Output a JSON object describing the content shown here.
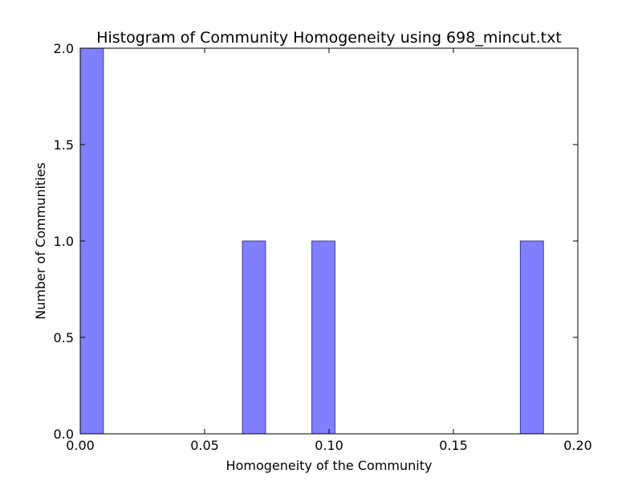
{
  "chart_data": {
    "type": "bar",
    "title": "Histogram of Community Homogeneity using 698_mincut.txt",
    "xlabel": "Homogeneity of the Community",
    "ylabel": "Number of Communities",
    "xlim": [
      0.0,
      0.2
    ],
    "ylim": [
      0.0,
      2.0
    ],
    "x_ticks": [
      "0.00",
      "0.05",
      "0.10",
      "0.15",
      "0.20"
    ],
    "y_ticks": [
      "0.0",
      "0.5",
      "1.0",
      "1.5",
      "2.0"
    ],
    "grid": false,
    "bins": [
      {
        "x0": 0.0,
        "x1": 0.0093,
        "count": 2
      },
      {
        "x0": 0.0652,
        "x1": 0.0745,
        "count": 1
      },
      {
        "x0": 0.0931,
        "x1": 0.1024,
        "count": 1
      },
      {
        "x0": 0.1769,
        "x1": 0.1862,
        "count": 1
      }
    ],
    "colors": {
      "bar_fill": "#8080ff",
      "bar_edge": "#3a3a9a"
    }
  }
}
